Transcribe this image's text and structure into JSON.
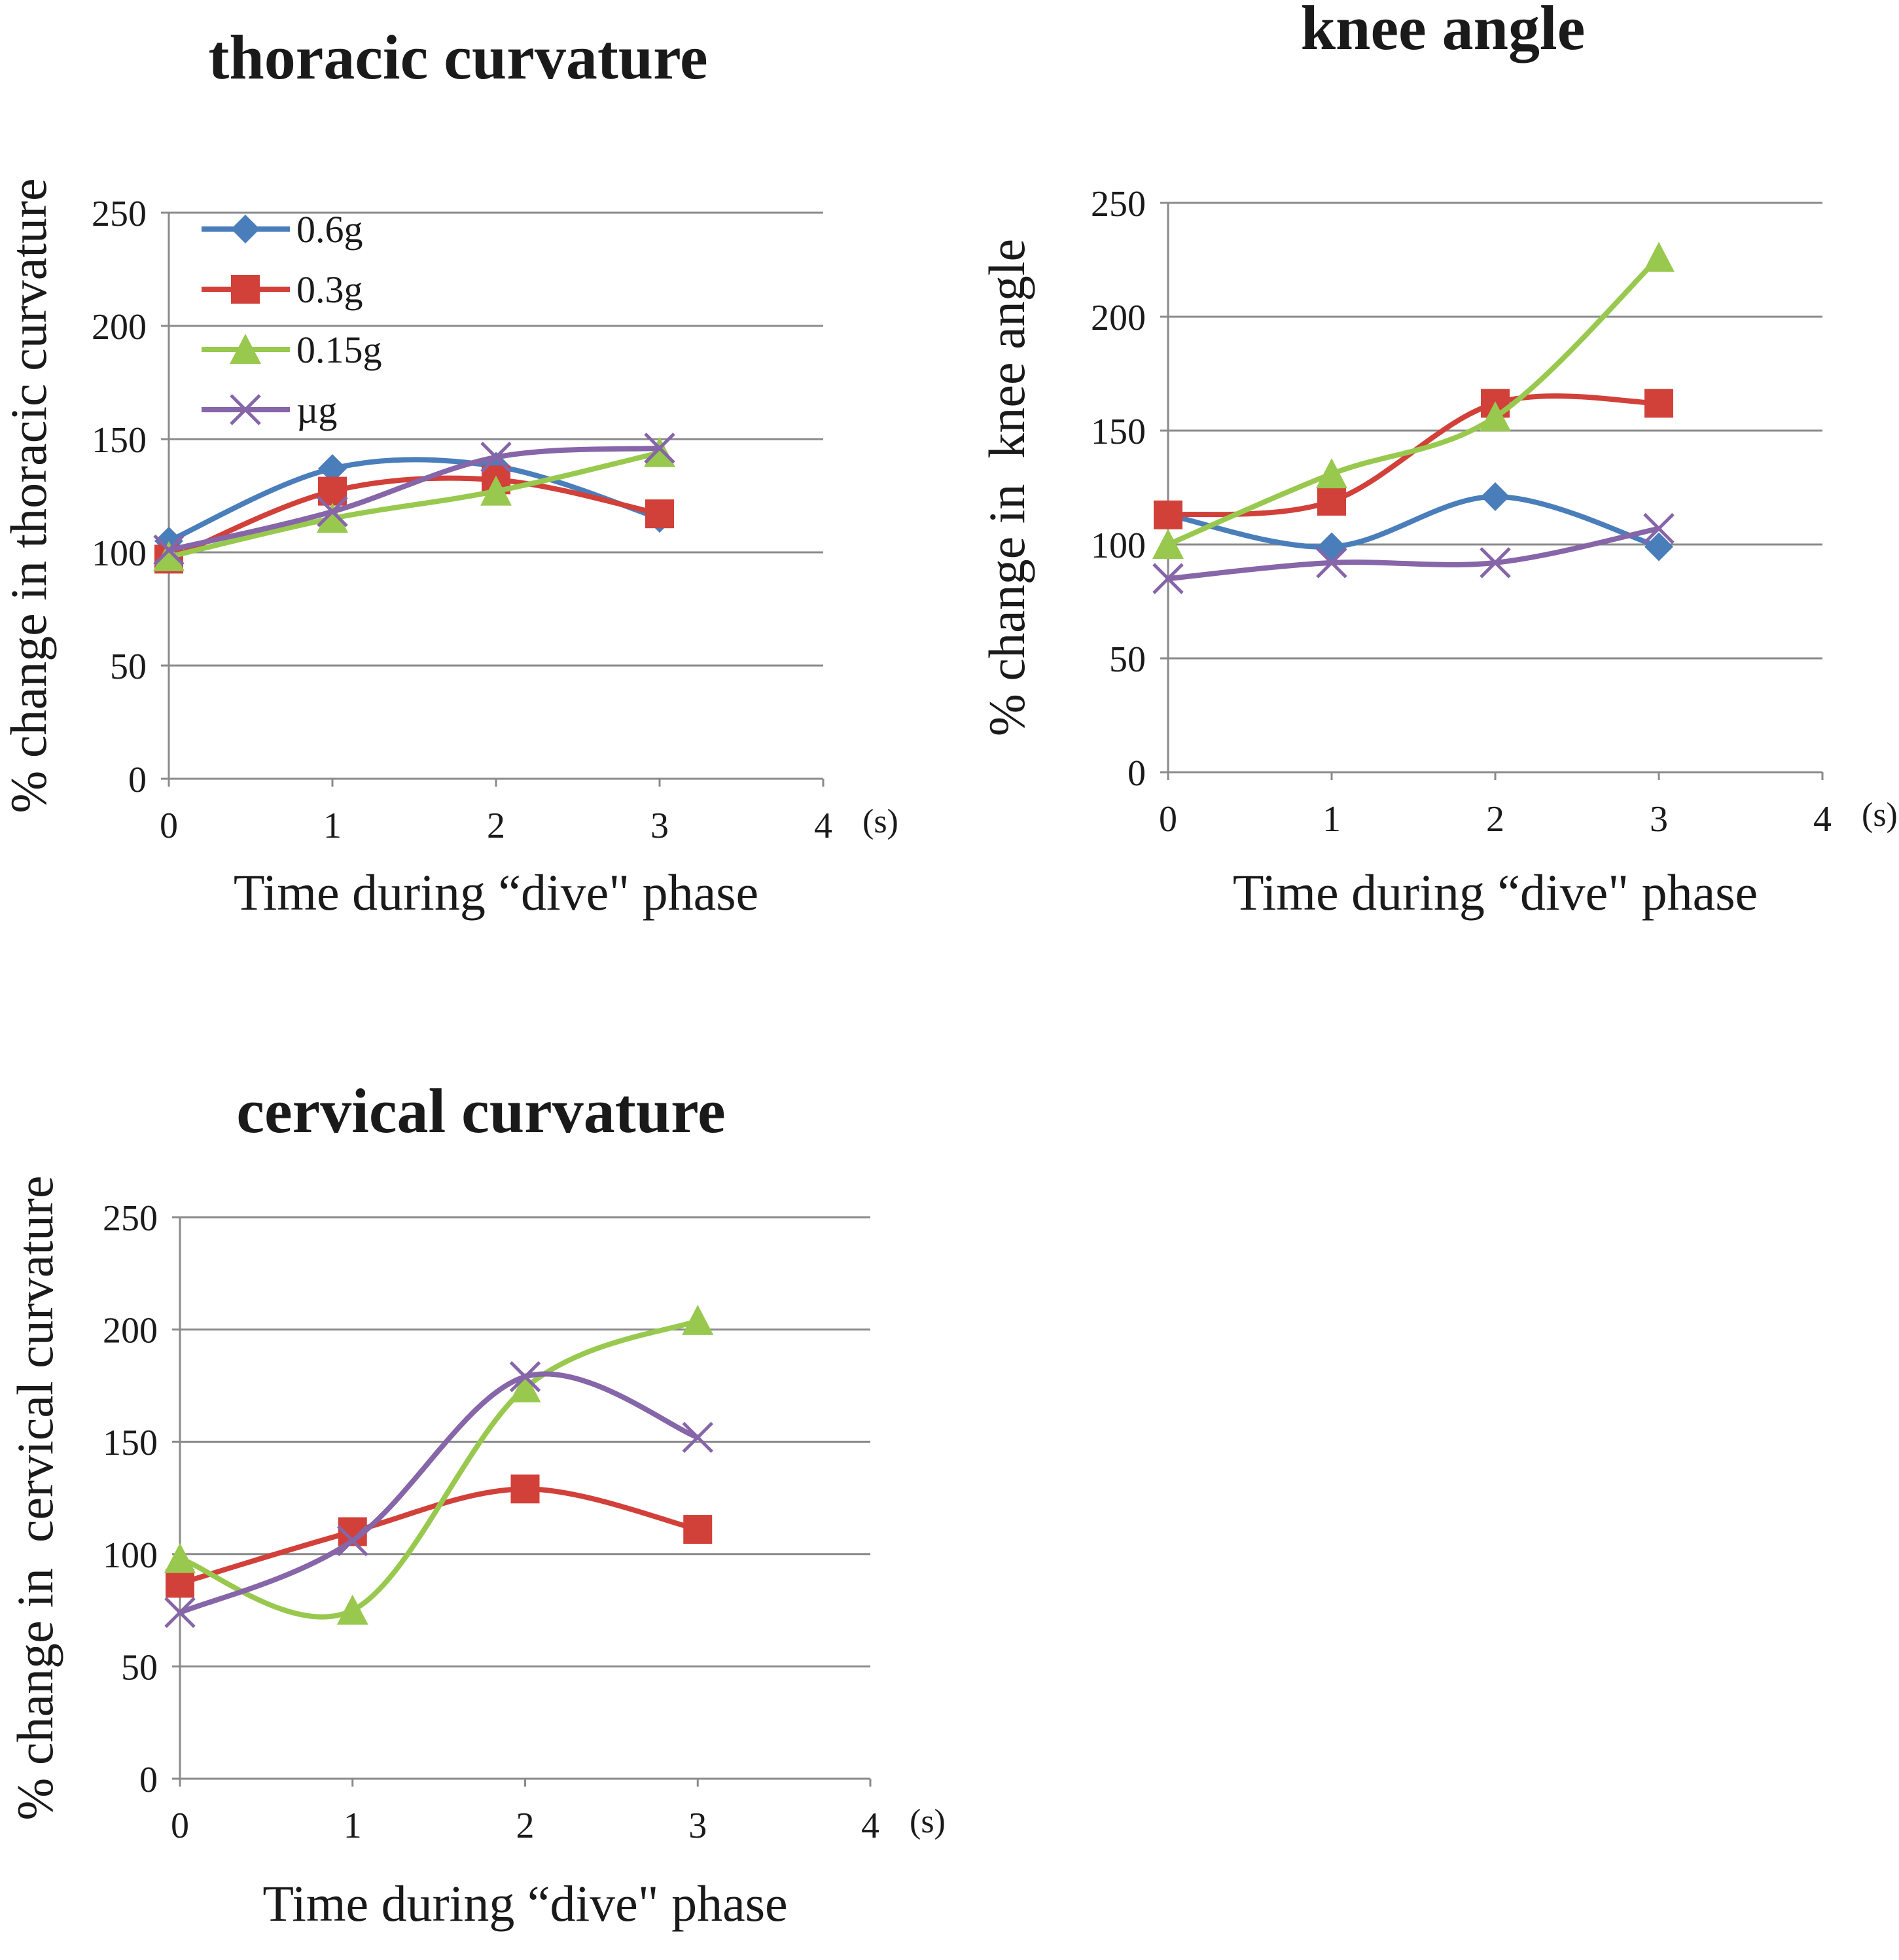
{
  "colors": {
    "0.6g": "#4a7ebb",
    "0.3g": "#d2403a",
    "0.15g": "#98c94e",
    "µg": "#8665a8"
  },
  "chart_data": [
    {
      "id": "thoracic",
      "type": "line",
      "title": "thoracic curvature",
      "xlabel": "Time during “dive\" phase",
      "ylabel": "% change in thoracic curvature",
      "x_unit": "(s)",
      "x": [
        0,
        1,
        2,
        3
      ],
      "xlim": [
        0,
        4
      ],
      "xticks": [
        "0",
        "1",
        "2",
        "3",
        "4"
      ],
      "ylim": [
        0,
        250
      ],
      "yticks": [
        "0",
        "50",
        "100",
        "150",
        "200",
        "250"
      ],
      "grid": true,
      "legend": "top-left",
      "series": [
        {
          "name": "0.6g",
          "marker": "diamond",
          "values": [
            105,
            137,
            138,
            115
          ]
        },
        {
          "name": "0.3g",
          "marker": "square",
          "values": [
            97,
            127,
            132,
            117
          ]
        },
        {
          "name": "0.15g",
          "marker": "triangle",
          "values": [
            98,
            115,
            127,
            144
          ]
        },
        {
          "name": "µg",
          "marker": "x",
          "values": [
            101,
            118,
            142,
            146
          ]
        }
      ]
    },
    {
      "id": "knee",
      "type": "line",
      "title": "knee angle",
      "xlabel": "Time during “dive\" phase",
      "ylabel": "% change in  knee angle",
      "x_unit": "(s)",
      "x": [
        0,
        1,
        2,
        3
      ],
      "xlim": [
        0,
        4
      ],
      "xticks": [
        "0",
        "1",
        "2",
        "3",
        "4"
      ],
      "ylim": [
        0,
        250
      ],
      "yticks": [
        "0",
        "50",
        "100",
        "150",
        "200",
        "250"
      ],
      "grid": true,
      "series": [
        {
          "name": "0.6g",
          "marker": "diamond",
          "values": [
            113,
            99,
            121,
            99
          ]
        },
        {
          "name": "0.3g",
          "marker": "square",
          "values": [
            113,
            119,
            162,
            162
          ]
        },
        {
          "name": "0.15g",
          "marker": "triangle",
          "values": [
            100,
            131,
            156,
            226
          ]
        },
        {
          "name": "µg",
          "marker": "x",
          "values": [
            85,
            92,
            92,
            107
          ]
        }
      ]
    },
    {
      "id": "cervical",
      "type": "line",
      "title": "cervical curvature",
      "xlabel": "Time during “dive\" phase",
      "ylabel": "% change in  cervical curvature",
      "x_unit": "(s)",
      "x": [
        0,
        1,
        2,
        3
      ],
      "xlim": [
        0,
        4
      ],
      "xticks": [
        "0",
        "1",
        "2",
        "3",
        "4"
      ],
      "ylim": [
        0,
        250
      ],
      "yticks": [
        "0",
        "50",
        "100",
        "150",
        "200",
        "250"
      ],
      "grid": true,
      "series": [
        {
          "name": "0.3g",
          "marker": "square",
          "values": [
            87,
            110,
            129,
            111
          ]
        },
        {
          "name": "0.15g",
          "marker": "triangle",
          "values": [
            98,
            75,
            174,
            204
          ]
        },
        {
          "name": "µg",
          "marker": "x",
          "values": [
            74,
            106,
            179,
            152
          ]
        }
      ]
    }
  ]
}
